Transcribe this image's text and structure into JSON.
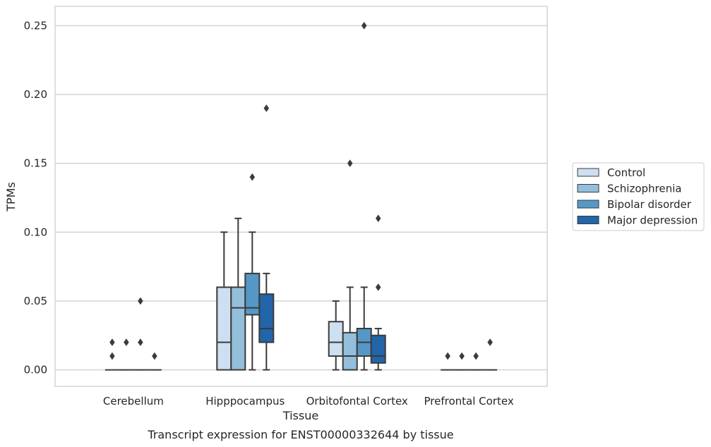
{
  "chart_data": {
    "type": "box",
    "title": "",
    "caption": "Transcript expression for ENST00000332644 by tissue",
    "xlabel": "Tissue",
    "ylabel": "TPMs",
    "ylim": [
      -0.012,
      0.264
    ],
    "yticks": [
      "0.00",
      "0.05",
      "0.10",
      "0.15",
      "0.20",
      "0.25"
    ],
    "grid": "horizontal",
    "legend_position": "right",
    "categories": [
      "Cerebellum",
      "Hipppocampus",
      "Orbitofontal Cortex",
      "Prefrontal Cortex"
    ],
    "series": [
      {
        "name": "Control",
        "color": "#cddff0",
        "boxes": [
          {
            "q1": 0,
            "median": 0,
            "q3": 0,
            "whislo": 0,
            "whishi": 0,
            "fliers": [
              0.01,
              0.02
            ]
          },
          {
            "q1": 0,
            "median": 0.02,
            "q3": 0.06,
            "whislo": 0,
            "whishi": 0.1,
            "fliers": []
          },
          {
            "q1": 0.01,
            "median": 0.02,
            "q3": 0.035,
            "whislo": 0,
            "whishi": 0.05,
            "fliers": []
          },
          {
            "q1": 0,
            "median": 0,
            "q3": 0,
            "whislo": 0,
            "whishi": 0,
            "fliers": [
              0.01
            ]
          }
        ]
      },
      {
        "name": "Schizophrenia",
        "color": "#94bfdb",
        "boxes": [
          {
            "q1": 0,
            "median": 0,
            "q3": 0,
            "whislo": 0,
            "whishi": 0,
            "fliers": [
              0.02
            ]
          },
          {
            "q1": 0,
            "median": 0.045,
            "q3": 0.06,
            "whislo": 0,
            "whishi": 0.11,
            "fliers": []
          },
          {
            "q1": 0,
            "median": 0.01,
            "q3": 0.027,
            "whislo": 0,
            "whishi": 0.06,
            "fliers": [
              0.15
            ]
          },
          {
            "q1": 0,
            "median": 0,
            "q3": 0,
            "whislo": 0,
            "whishi": 0,
            "fliers": [
              0.01
            ]
          }
        ]
      },
      {
        "name": "Bipolar disorder",
        "color": "#5598c8",
        "boxes": [
          {
            "q1": 0,
            "median": 0,
            "q3": 0,
            "whislo": 0,
            "whishi": 0,
            "fliers": [
              0.02,
              0.05
            ]
          },
          {
            "q1": 0.04,
            "median": 0.045,
            "q3": 0.07,
            "whislo": 0,
            "whishi": 0.1,
            "fliers": [
              0.14
            ]
          },
          {
            "q1": 0.01,
            "median": 0.02,
            "q3": 0.03,
            "whislo": 0,
            "whishi": 0.06,
            "fliers": [
              0.25
            ]
          },
          {
            "q1": 0,
            "median": 0,
            "q3": 0,
            "whislo": 0,
            "whishi": 0,
            "fliers": [
              0.01
            ]
          }
        ]
      },
      {
        "name": "Major depression",
        "color": "#2265a8",
        "boxes": [
          {
            "q1": 0,
            "median": 0,
            "q3": 0,
            "whislo": 0,
            "whishi": 0,
            "fliers": [
              0.01
            ]
          },
          {
            "q1": 0.02,
            "median": 0.03,
            "q3": 0.055,
            "whislo": 0,
            "whishi": 0.07,
            "fliers": [
              0.19
            ]
          },
          {
            "q1": 0.005,
            "median": 0.01,
            "q3": 0.025,
            "whislo": 0,
            "whishi": 0.03,
            "fliers": [
              0.06,
              0.11
            ]
          },
          {
            "q1": 0,
            "median": 0,
            "q3": 0,
            "whislo": 0,
            "whishi": 0,
            "fliers": [
              0.02
            ]
          }
        ]
      }
    ]
  }
}
